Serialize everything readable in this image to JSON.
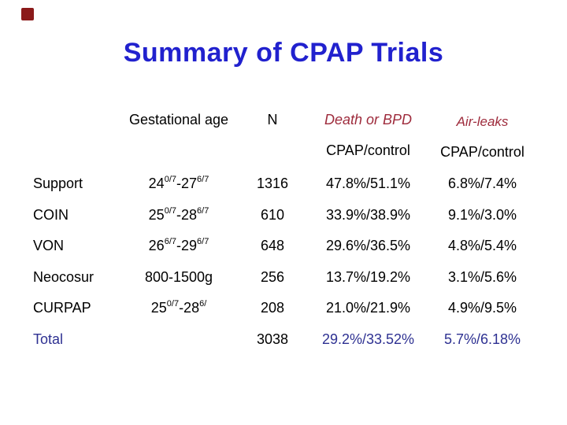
{
  "slide": {
    "title": "Summary of CPAP Trials",
    "colors": {
      "title-blue": "#2121CE",
      "header-red": "#9E2B3C",
      "total-navy": "#2E3192",
      "corner-red": "#8B1A1A",
      "body-black": "#000000",
      "background": "#FFFFFF"
    }
  },
  "table": {
    "headers": {
      "gestational_age": "Gestational age",
      "n": "N",
      "death_or_bpd": "Death or BPD",
      "air_leaks": "Air-leaks",
      "death_subheader": "CPAP/control",
      "air_subheader": "CPAP/control"
    },
    "rows": [
      {
        "name": "Support",
        "ga_b1": "24",
        "ga_s1": "0/7",
        "ga_b2": "-27",
        "ga_s2": "6/7",
        "n": "1316",
        "death_or_bpd": "47.8%/51.1%",
        "air_leaks": "6.8%/7.4%"
      },
      {
        "name": "COIN",
        "ga_b1": "25",
        "ga_s1": "0/7",
        "ga_b2": "-28",
        "ga_s2": "6/7",
        "n": "610",
        "death_or_bpd": "33.9%/38.9%",
        "air_leaks": "9.1%/3.0%"
      },
      {
        "name": "VON",
        "ga_b1": "26",
        "ga_s1": "6/7",
        "ga_b2": "-29",
        "ga_s2": "6/7",
        "n": "648",
        "death_or_bpd": "29.6%/36.5%",
        "air_leaks": "4.8%/5.4%"
      },
      {
        "name": "Neocosur",
        "ga_b1": "800-1500g",
        "ga_s1": "",
        "ga_b2": "",
        "ga_s2": "",
        "n": "256",
        "death_or_bpd": "13.7%/19.2%",
        "air_leaks": "3.1%/5.6%"
      },
      {
        "name": "CURPAP",
        "ga_b1": "25",
        "ga_s1": "0/7",
        "ga_b2": "-28",
        "ga_s2": "6/",
        "n": "208",
        "death_or_bpd": "21.0%/21.9%",
        "air_leaks": "4.9%/9.5%"
      },
      {
        "name": "Total",
        "ga_b1": "",
        "ga_s1": "",
        "ga_b2": "",
        "ga_s2": "",
        "n": "3038",
        "death_or_bpd": "29.2%/33.52%",
        "air_leaks": "5.7%/6.18%"
      }
    ]
  }
}
